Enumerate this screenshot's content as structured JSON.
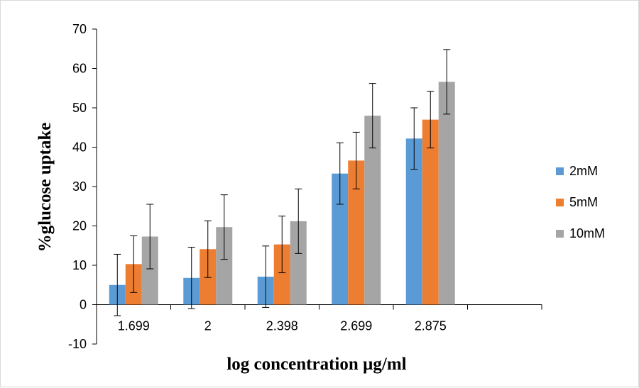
{
  "chart_data": {
    "type": "bar",
    "title": "",
    "xlabel": "log concentration µg/ml",
    "ylabel": "%glucose uptake",
    "ylim": [
      -10,
      70
    ],
    "yticks": [
      -10,
      0,
      10,
      20,
      30,
      40,
      50,
      60,
      70
    ],
    "categories": [
      "1.699",
      "2",
      "2.398",
      "2.699",
      "2.875",
      ""
    ],
    "series": [
      {
        "name": "2mM",
        "color": "#5b9bd5",
        "values": [
          5.0,
          6.8,
          7.1,
          33.3,
          42.2,
          null
        ],
        "errors": [
          7.8,
          7.8,
          7.8,
          7.8,
          7.8,
          null
        ]
      },
      {
        "name": "5mM",
        "color": "#ed7d31",
        "values": [
          10.3,
          14.1,
          15.3,
          36.6,
          47.0,
          null
        ],
        "errors": [
          7.2,
          7.2,
          7.2,
          7.2,
          7.2,
          null
        ]
      },
      {
        "name": "10mM",
        "color": "#a5a5a5",
        "values": [
          17.3,
          19.7,
          21.2,
          48.0,
          56.6,
          null
        ],
        "errors": [
          8.2,
          8.2,
          8.2,
          8.2,
          8.2,
          null
        ]
      }
    ],
    "grid": false,
    "legend": "right"
  }
}
